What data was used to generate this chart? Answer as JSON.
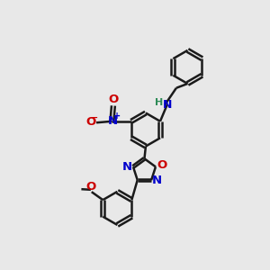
{
  "bg_color": "#e8e8e8",
  "bond_color": "#1a1a1a",
  "N_color": "#0000cc",
  "O_color": "#cc0000",
  "H_color": "#2e8b57",
  "lw": 1.8,
  "figsize": [
    3.0,
    3.0
  ],
  "dpi": 100,
  "xlim": [
    0,
    10
  ],
  "ylim": [
    0,
    10
  ]
}
